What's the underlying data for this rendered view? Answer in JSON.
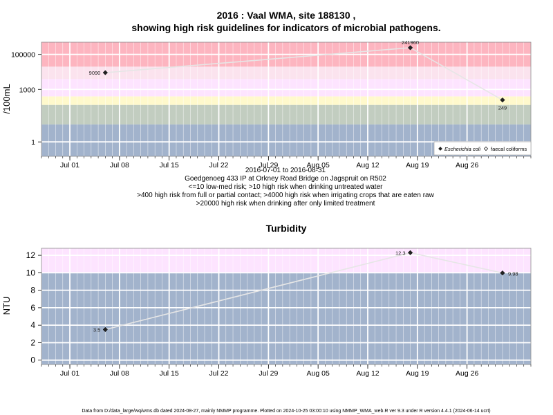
{
  "chart_data": [
    {
      "type": "line",
      "title_line1": "2016 : Vaal WMA, site 188130 ,",
      "title_line2": "showing high risk guidelines for indicators of microbial pathogens.",
      "ylabel": "/100mL",
      "yscale": "log",
      "ylim": [
        0.15,
        500000
      ],
      "xlim": [
        "2016-06-27",
        "2016-09-04"
      ],
      "x_ticks": [
        {
          "date": "2016-07-01",
          "label": "Jul 01"
        },
        {
          "date": "2016-07-08",
          "label": "Jul 08"
        },
        {
          "date": "2016-07-15",
          "label": "Jul 15"
        },
        {
          "date": "2016-07-22",
          "label": "Jul 22"
        },
        {
          "date": "2016-07-29",
          "label": "Jul 29"
        },
        {
          "date": "2016-08-05",
          "label": "Aug 05"
        },
        {
          "date": "2016-08-12",
          "label": "Aug 12"
        },
        {
          "date": "2016-08-19",
          "label": "Aug 19"
        },
        {
          "date": "2016-08-26",
          "label": "Aug 26"
        }
      ],
      "y_ticks": [
        {
          "value": 1,
          "label": "1"
        },
        {
          "value": 1000,
          "label": "1000"
        },
        {
          "value": 100000,
          "label": "100000"
        }
      ],
      "bands": [
        {
          "from": 0.15,
          "to": 10,
          "color": "#a2b3cc"
        },
        {
          "from": 10,
          "to": 130,
          "color": "#c2cdc0"
        },
        {
          "from": 130,
          "to": 400,
          "color": "#fff9cc"
        },
        {
          "from": 400,
          "to": 4000,
          "color": "#fde4ff"
        },
        {
          "from": 4000,
          "to": 20000,
          "color": "#fbe3ee"
        },
        {
          "from": 20000,
          "to": 500000,
          "color": "#fdb5c0"
        }
      ],
      "grid": true,
      "legend_position": "bottom-right",
      "series": [
        {
          "name": "Escherichia coli",
          "marker": "filled-diamond",
          "points": [
            {
              "date": "2016-07-06",
              "value": 9090,
              "label": "9090"
            },
            {
              "date": "2016-08-18",
              "value": 241960,
              "label": "241960"
            },
            {
              "date": "2016-08-31",
              "value": 249,
              "label": "249"
            }
          ]
        },
        {
          "name": "faecal coliforms",
          "marker": "open-diamond",
          "points": []
        }
      ],
      "notes": [
        "2016-07-01 to 2016-08-31",
        "Goedgenoeg 433 IP at Orkney Road Bridge on Jagspruit on R502",
        "<=10 low-med risk; >10 high risk when drinking untreated water",
        ">400 high risk from full or partial contact; >4000 high risk when irrigating crops that are eaten raw",
        ">20000 high risk when drinking after only limited treatment"
      ]
    },
    {
      "type": "line",
      "title": "Turbidity",
      "ylabel": "NTU",
      "ylim": [
        -0.5,
        12.8
      ],
      "xlim": [
        "2016-06-27",
        "2016-09-04"
      ],
      "x_ticks": [
        {
          "date": "2016-07-01",
          "label": "Jul 01"
        },
        {
          "date": "2016-07-08",
          "label": "Jul 08"
        },
        {
          "date": "2016-07-15",
          "label": "Jul 15"
        },
        {
          "date": "2016-07-22",
          "label": "Jul 22"
        },
        {
          "date": "2016-07-29",
          "label": "Jul 29"
        },
        {
          "date": "2016-08-05",
          "label": "Aug 05"
        },
        {
          "date": "2016-08-12",
          "label": "Aug 12"
        },
        {
          "date": "2016-08-19",
          "label": "Aug 19"
        },
        {
          "date": "2016-08-26",
          "label": "Aug 26"
        }
      ],
      "y_ticks": [
        {
          "value": 0,
          "label": "0"
        },
        {
          "value": 2,
          "label": "2"
        },
        {
          "value": 4,
          "label": "4"
        },
        {
          "value": 6,
          "label": "6"
        },
        {
          "value": 8,
          "label": "8"
        },
        {
          "value": 10,
          "label": "10"
        },
        {
          "value": 12,
          "label": "12"
        }
      ],
      "bands": [
        {
          "from": -0.5,
          "to": 10,
          "color": "#a2b3cc"
        },
        {
          "from": 10,
          "to": 12.8,
          "color": "#fde4ff"
        }
      ],
      "grid": true,
      "series": [
        {
          "marker": "filled-diamond",
          "points": [
            {
              "date": "2016-07-06",
              "value": 3.5,
              "label": "3.5"
            },
            {
              "date": "2016-08-18",
              "value": 12.3,
              "label": "12.3"
            },
            {
              "date": "2016-08-31",
              "value": 9.98,
              "label": "9.98"
            }
          ]
        }
      ]
    }
  ],
  "footer": "Data from D:/data_large/wq/wms.db dated 2024-08-27, mainly NMMP programme. Plotted on 2024-10-25 03:00:10 using NMMP_WMA_web.R ver 9.3 under R version 4.4.1 (2024-06-14 ucrt)"
}
